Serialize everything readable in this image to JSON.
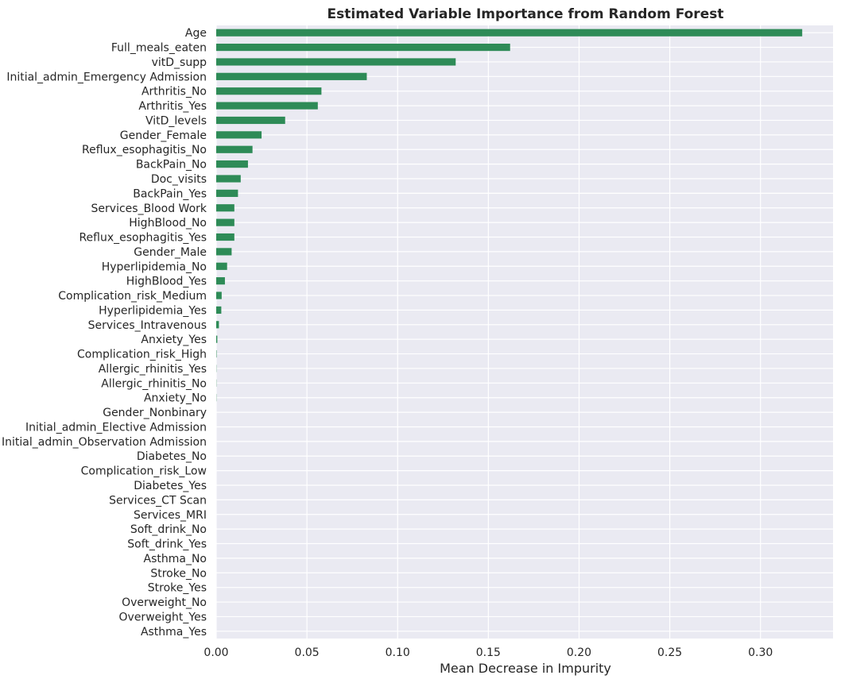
{
  "chart_data": {
    "type": "bar",
    "orientation": "horizontal",
    "title": "Estimated Variable Importance from Random Forest",
    "xlabel": "Mean Decrease in Impurity",
    "ylabel": "",
    "xlim": [
      0,
      0.34
    ],
    "xticks": [
      0.0,
      0.05,
      0.1,
      0.15,
      0.2,
      0.25,
      0.3
    ],
    "xtick_labels": [
      "0.00",
      "0.05",
      "0.10",
      "0.15",
      "0.20",
      "0.25",
      "0.30"
    ],
    "grid": true,
    "bar_color": "#2e8b57",
    "background_color": "#eaeaf2",
    "categories": [
      "Age",
      "Full_meals_eaten",
      "vitD_supp",
      "Initial_admin_Emergency Admission",
      "Arthritis_No",
      "Arthritis_Yes",
      "VitD_levels",
      "Gender_Female",
      "Reflux_esophagitis_No",
      "BackPain_No",
      "Doc_visits",
      "BackPain_Yes",
      "Services_Blood Work",
      "HighBlood_No",
      "Reflux_esophagitis_Yes",
      "Gender_Male",
      "Hyperlipidemia_No",
      "HighBlood_Yes",
      "Complication_risk_Medium",
      "Hyperlipidemia_Yes",
      "Services_Intravenous",
      "Anxiety_Yes",
      "Complication_risk_High",
      "Allergic_rhinitis_Yes",
      "Allergic_rhinitis_No",
      "Anxiety_No",
      "Gender_Nonbinary",
      "Initial_admin_Elective Admission",
      "Initial_admin_Observation Admission",
      "Diabetes_No",
      "Complication_risk_Low",
      "Diabetes_Yes",
      "Services_CT Scan",
      "Services_MRI",
      "Soft_drink_No",
      "Soft_drink_Yes",
      "Asthma_No",
      "Stroke_No",
      "Stroke_Yes",
      "Overweight_No",
      "Overweight_Yes",
      "Asthma_Yes"
    ],
    "values": [
      0.323,
      0.162,
      0.132,
      0.083,
      0.058,
      0.056,
      0.038,
      0.025,
      0.02,
      0.0175,
      0.0135,
      0.012,
      0.01,
      0.01,
      0.01,
      0.0085,
      0.006,
      0.0048,
      0.003,
      0.0028,
      0.0015,
      0.0006,
      0.0002,
      0.0001,
      0.0001,
      0.0001,
      0.0,
      0.0,
      0.0,
      0.0,
      0.0,
      0.0,
      0.0,
      0.0,
      0.0,
      0.0,
      0.0,
      0.0,
      0.0,
      0.0,
      0.0,
      0.0
    ]
  }
}
